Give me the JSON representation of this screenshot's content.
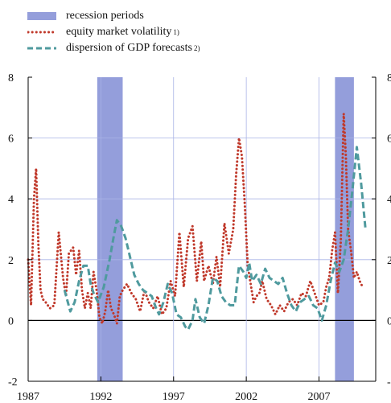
{
  "legend": {
    "recession": "recession periods",
    "volatility": "equity market volatility",
    "volatility_note": "1)",
    "dispersion": "dispersion of GDP forecasts",
    "dispersion_note": "2)"
  },
  "colors": {
    "recession": "#949edb",
    "volatility": "#c0392b",
    "dispersion": "#4f9a9e",
    "grid": "#a9b3e6",
    "axis": "#000000"
  },
  "chart_data": {
    "type": "line",
    "x_ticks": [
      1987,
      1992,
      1997,
      2002,
      2007
    ],
    "y_ticks_left": [
      -2,
      0,
      2,
      4,
      6,
      8
    ],
    "y_ticks_right": [
      "-",
      "0",
      "2",
      "4",
      "6",
      "8"
    ],
    "xlim": [
      1987,
      2010.9
    ],
    "ylim": [
      -2,
      8
    ],
    "grid": true,
    "legend_position": "top-left",
    "recessions": [
      [
        1991.75,
        1993.5
      ],
      [
        2008.1,
        2009.4
      ]
    ],
    "series": [
      {
        "key": "volatility",
        "name": "equity market volatility",
        "x": [
          1987.0,
          1987.2,
          1987.4,
          1987.55,
          1987.7,
          1987.85,
          1988.0,
          1988.2,
          1988.5,
          1988.8,
          1989.1,
          1989.4,
          1989.6,
          1989.8,
          1990.1,
          1990.3,
          1990.5,
          1990.7,
          1990.9,
          1991.1,
          1991.3,
          1991.5,
          1991.7,
          1991.9,
          1992.1,
          1992.3,
          1992.5,
          1992.7,
          1992.9,
          1993.1,
          1993.3,
          1993.5,
          1993.8,
          1994.1,
          1994.4,
          1994.7,
          1995.0,
          1995.3,
          1995.6,
          1995.9,
          1996.2,
          1996.5,
          1996.8,
          1997.1,
          1997.4,
          1997.7,
          1998.0,
          1998.3,
          1998.6,
          1998.9,
          1999.1,
          1999.4,
          1999.7,
          1999.95,
          2000.2,
          2000.5,
          2000.8,
          2001.1,
          2001.3,
          2001.5,
          2001.7,
          2001.9,
          2002.1,
          2002.3,
          2002.5,
          2002.7,
          2002.9,
          2003.1,
          2003.4,
          2003.7,
          2004.0,
          2004.3,
          2004.6,
          2004.9,
          2005.2,
          2005.5,
          2005.8,
          2006.1,
          2006.4,
          2006.7,
          2007.0,
          2007.3,
          2007.5,
          2007.7,
          2007.9,
          2008.1,
          2008.3,
          2008.5,
          2008.7,
          2008.85,
          2009.0,
          2009.2,
          2009.4,
          2009.6,
          2009.8,
          2010.0
        ],
        "y": [
          2.0,
          0.5,
          4.0,
          5.0,
          2.5,
          1.0,
          0.7,
          0.6,
          0.4,
          0.5,
          2.9,
          1.4,
          0.8,
          2.2,
          2.4,
          1.5,
          2.3,
          1.0,
          0.4,
          0.9,
          0.4,
          1.6,
          1.0,
          0.1,
          -0.1,
          0.3,
          1.0,
          0.4,
          0.2,
          -0.1,
          0.8,
          1.0,
          1.2,
          0.9,
          0.7,
          0.3,
          1.0,
          0.6,
          0.4,
          0.8,
          0.2,
          0.4,
          1.3,
          0.8,
          2.9,
          1.1,
          2.7,
          3.1,
          1.3,
          2.6,
          1.3,
          1.8,
          1.2,
          2.1,
          1.1,
          3.2,
          2.2,
          3.0,
          4.8,
          6.0,
          5.4,
          3.8,
          1.8,
          1.2,
          0.6,
          0.8,
          0.9,
          1.3,
          0.7,
          0.5,
          0.2,
          0.5,
          0.3,
          0.6,
          0.7,
          0.5,
          0.9,
          0.8,
          1.3,
          0.9,
          0.5,
          0.6,
          1.1,
          1.4,
          2.3,
          2.9,
          0.9,
          2.6,
          6.8,
          5.4,
          3.0,
          2.3,
          1.4,
          1.6,
          1.3,
          1.1
        ]
      },
      {
        "key": "dispersion",
        "name": "dispersion of GDP forecasts",
        "x": [
          1989.5,
          1989.9,
          1990.2,
          1990.5,
          1990.8,
          1991.1,
          1991.3,
          1991.5,
          1991.8,
          1992.2,
          1992.6,
          1992.9,
          1993.1,
          1993.4,
          1993.7,
          1994.0,
          1994.3,
          1994.6,
          1994.9,
          1995.2,
          1995.5,
          1995.8,
          1996.0,
          1996.3,
          1996.6,
          1996.9,
          1997.2,
          1997.5,
          1997.8,
          1998.0,
          1998.3,
          1998.5,
          1998.8,
          1999.1,
          1999.4,
          1999.7,
          2000.0,
          2000.3,
          2000.6,
          2000.9,
          2001.2,
          2001.5,
          2001.8,
          2002.0,
          2002.2,
          2002.4,
          2002.7,
          2003.0,
          2003.3,
          2003.6,
          2003.9,
          2004.2,
          2004.5,
          2004.8,
          2005.1,
          2005.4,
          2005.7,
          2006.0,
          2006.3,
          2006.6,
          2006.9,
          2007.2,
          2007.5,
          2007.8,
          2008.1,
          2008.4,
          2008.7,
          2009.0,
          2009.3,
          2009.6,
          2009.9,
          2010.2
        ],
        "y": [
          1.0,
          0.3,
          0.6,
          1.3,
          1.8,
          1.8,
          1.2,
          0.9,
          0.6,
          1.1,
          2.0,
          2.8,
          3.3,
          3.1,
          2.7,
          2.1,
          1.5,
          1.2,
          1.0,
          0.9,
          0.8,
          0.4,
          0.2,
          0.6,
          1.2,
          0.9,
          0.2,
          0.1,
          -0.2,
          -0.3,
          0.0,
          0.7,
          0.1,
          -0.1,
          0.5,
          1.4,
          1.3,
          0.8,
          0.6,
          0.5,
          0.5,
          1.8,
          1.6,
          1.4,
          1.9,
          1.3,
          1.5,
          1.2,
          1.7,
          1.4,
          1.3,
          1.2,
          1.4,
          0.9,
          0.5,
          0.3,
          0.6,
          0.7,
          0.8,
          0.5,
          0.4,
          0.0,
          0.5,
          1.3,
          1.9,
          1.6,
          2.0,
          3.0,
          4.3,
          5.7,
          4.5,
          3.0
        ]
      }
    ]
  }
}
